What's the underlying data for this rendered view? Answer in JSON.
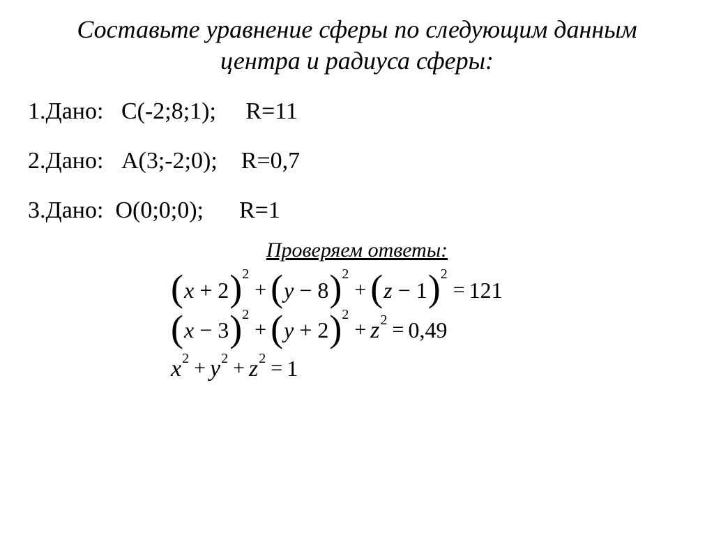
{
  "title": "Составьте уравнение сферы по следующим данным центра и радиуса сферы:",
  "given": [
    {
      "num": "1.",
      "word": "Дано:",
      "point": "С(-2;8;1);",
      "radius": "R=11"
    },
    {
      "num": "2.",
      "word": "Дано:",
      "point": "А(3;-2;0);",
      "radius": "R=0,7"
    },
    {
      "num": "3.",
      "word": "Дано:",
      "point": "О(0;0;0);",
      "radius": "R=1"
    }
  ],
  "answers_title": "Проверяем ответы:",
  "equations": {
    "eq1": {
      "t1_var": "x",
      "t1_op": "+",
      "t1_num": "2",
      "t2_var": "y",
      "t2_op": "−",
      "t2_num": "8",
      "t3_var": "z",
      "t3_op": "−",
      "t3_num": "1",
      "sup": "2",
      "rhs": "121"
    },
    "eq2": {
      "t1_var": "x",
      "t1_op": "−",
      "t1_num": "3",
      "t2_var": "y",
      "t2_op": "+",
      "t2_num": "2",
      "t3_var": "z",
      "sup": "2",
      "rhs": "0,49"
    },
    "eq3": {
      "t1_var": "x",
      "t2_var": "y",
      "t3_var": "z",
      "sup": "2",
      "rhs": "1"
    }
  },
  "symbols": {
    "plus": "+",
    "equals": "="
  },
  "style": {
    "background_color": "#ffffff",
    "text_color": "#000000",
    "title_fontsize": 36,
    "given_fontsize": 34,
    "answers_title_fontsize": 30,
    "equation_fontsize": 34,
    "font_family": "Times New Roman"
  }
}
